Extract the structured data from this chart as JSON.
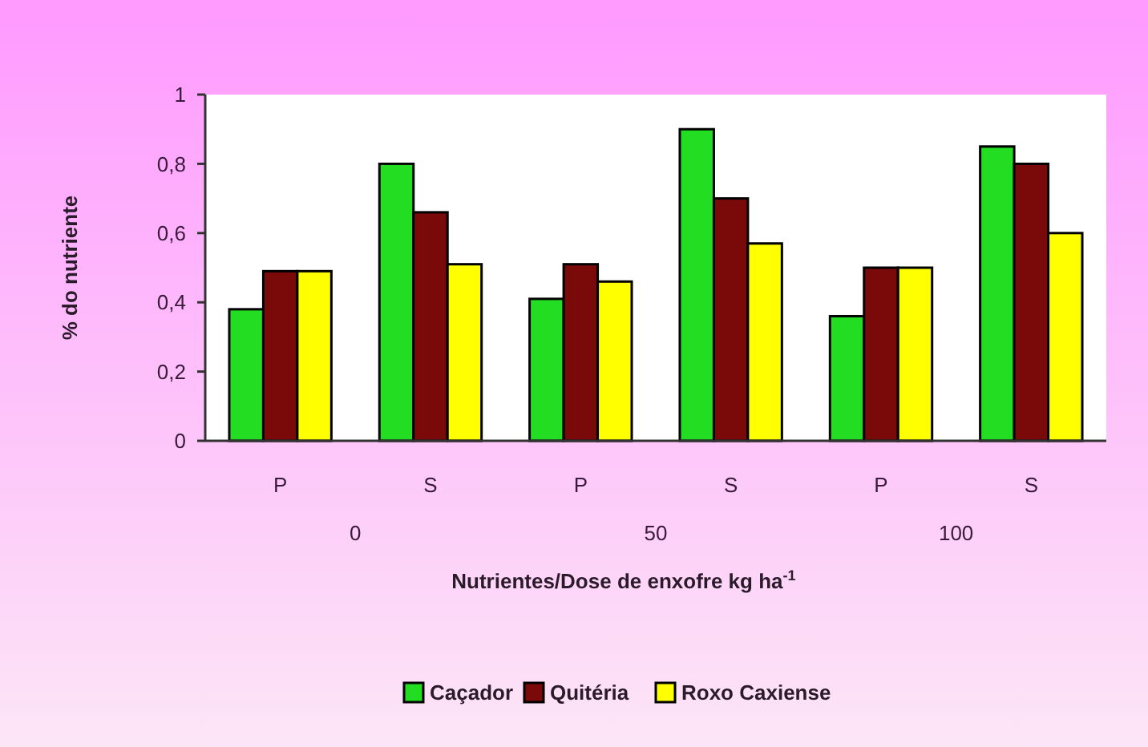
{
  "chart_data": {
    "type": "bar",
    "categories": [
      "P",
      "S",
      "P",
      "S",
      "P",
      "S"
    ],
    "series": [
      {
        "name": "Caçador",
        "color": "#22dd22",
        "values": [
          0.38,
          0.8,
          0.41,
          0.9,
          0.36,
          0.85
        ]
      },
      {
        "name": "Quitéria",
        "color": "#7a0a0a",
        "values": [
          0.49,
          0.66,
          0.51,
          0.7,
          0.5,
          0.8
        ]
      },
      {
        "name": "Roxo Caxiense",
        "color": "#ffff00",
        "values": [
          0.49,
          0.51,
          0.46,
          0.57,
          0.5,
          0.6
        ]
      }
    ],
    "ylim": [
      0,
      1
    ],
    "yticks": [
      0,
      {
        "value": 0.2,
        "label": "0,2"
      },
      {
        "value": 0.4,
        "label": "0,4"
      },
      {
        "value": 0.6,
        "label": "0,6"
      },
      {
        "value": 0.8,
        "label": "0,8"
      },
      1
    ],
    "ylabel": "% do nutriente",
    "xlabel": "Nutrientes/Dose de enxofre kg ha$^{-1}$",
    "annotations": [
      "0",
      "50",
      "100"
    ],
    "legend": "bottom",
    "grid": false
  }
}
